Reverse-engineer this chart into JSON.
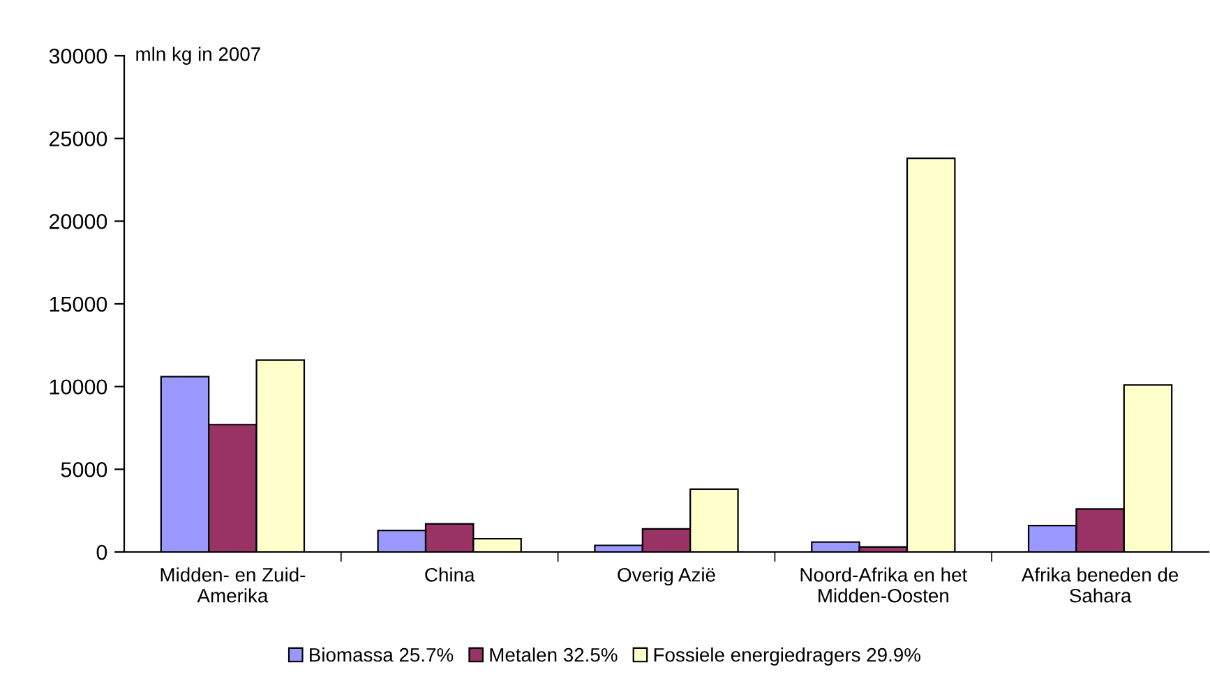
{
  "chart_data": {
    "type": "bar",
    "categories": [
      "Midden- en Zuid-\nAmerika",
      "China",
      "Overig Azië",
      "Noord-Afrika en het\nMidden-Oosten",
      "Afrika beneden de\nSahara"
    ],
    "series": [
      {
        "name": "Biomassa 25.7%",
        "color": "#9999ff",
        "values": [
          10600,
          1300,
          400,
          600,
          1600
        ]
      },
      {
        "name": "Metalen 32.5%",
        "color": "#993366",
        "values": [
          7700,
          1700,
          1400,
          300,
          2600
        ]
      },
      {
        "name": "Fossiele energiedragers 29.9%",
        "color": "#ffffcc",
        "values": [
          11600,
          800,
          3800,
          23800,
          10100
        ]
      }
    ],
    "ylim": [
      0,
      30000
    ],
    "yticks": [
      0,
      5000,
      10000,
      15000,
      20000,
      25000,
      30000
    ],
    "annotations": [
      "mln kg in 2007"
    ],
    "grid": false,
    "legend": "bottom"
  }
}
